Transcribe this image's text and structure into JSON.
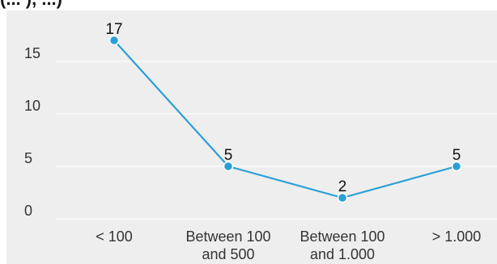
{
  "top_fragment": "(...                    ), ...)",
  "colors": {
    "background": "#eeeeee",
    "gridline": "#ffffff",
    "series": "#2a9fd6",
    "marker_outline": "#ffffff",
    "text": "#333333"
  },
  "chart_data": {
    "type": "line",
    "title": "",
    "xlabel": "",
    "ylabel": "",
    "categories": [
      [
        "< 100"
      ],
      [
        "Between 100",
        "and 500"
      ],
      [
        "Between 100",
        "and 1.000"
      ],
      [
        "> 1.000"
      ]
    ],
    "series": [
      {
        "values": [
          17,
          5,
          2,
          5
        ]
      }
    ],
    "data_labels": [
      "17",
      "5",
      "2",
      "5"
    ],
    "ylim": [
      0,
      19
    ],
    "yticks": [
      0,
      5,
      10,
      15
    ],
    "ytick_labels": [
      "0",
      "5",
      "10",
      "15"
    ],
    "grid": true,
    "markers": true
  }
}
